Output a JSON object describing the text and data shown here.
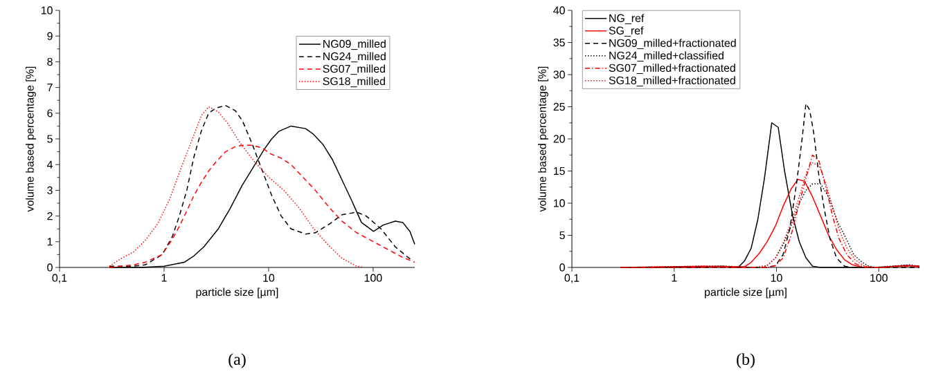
{
  "chart_data": [
    {
      "type": "line",
      "xlabel": "particle size [µm]",
      "ylabel": "volume based percentage [%]",
      "log": "x",
      "xlim": [
        0.1,
        250
      ],
      "ylim": [
        0,
        10
      ],
      "xticks": [
        {
          "value": 0.1,
          "label": "0,1"
        },
        1,
        10,
        100
      ],
      "yticks": [
        0,
        1,
        2,
        3,
        4,
        5,
        6,
        7,
        8,
        9,
        10
      ],
      "legend": "top right",
      "annotations": [
        "(a)"
      ],
      "series": [
        {
          "name": "NG09_milled",
          "color": "#000000",
          "line_style": "solid",
          "x": [
            0.3,
            0.6,
            1,
            1.56,
            1.93,
            2.4,
            3.3,
            4.3,
            5.6,
            7.4,
            9.1,
            10.7,
            12.6,
            16.4,
            22.6,
            26.5,
            32.9,
            40.7,
            50.4,
            62.4,
            77.3,
            101,
            125,
            163,
            192,
            225,
            250
          ],
          "values": [
            0,
            0,
            0.05,
            0.2,
            0.45,
            0.8,
            1.5,
            2.3,
            3.2,
            4.0,
            4.6,
            5.0,
            5.3,
            5.5,
            5.4,
            5.2,
            4.8,
            4.2,
            3.4,
            2.6,
            1.75,
            1.4,
            1.65,
            1.8,
            1.75,
            1.4,
            0.9
          ]
        },
        {
          "name": "NG24_milled",
          "color": "#000000",
          "line_style": "dashed",
          "x": [
            0.3,
            0.51,
            0.66,
            0.96,
            1.2,
            1.4,
            1.65,
            1.93,
            2.27,
            2.67,
            3.13,
            3.87,
            4.8,
            5.63,
            6.97,
            8.64,
            10.7,
            13.2,
            16.4,
            22.6,
            28,
            38.6,
            50.4,
            69.5,
            86,
            119,
            163,
            238
          ],
          "values": [
            0.05,
            0.05,
            0.1,
            0.5,
            1.2,
            2.0,
            3.0,
            4.3,
            5.3,
            6.0,
            6.2,
            6.3,
            6.1,
            5.7,
            4.8,
            3.8,
            2.8,
            2.0,
            1.5,
            1.3,
            1.35,
            1.7,
            2.05,
            2.15,
            2.0,
            1.5,
            0.8,
            0.25
          ]
        },
        {
          "name": "SG07_milled",
          "color": "#ff0000",
          "line_style": "dashed",
          "x": [
            0.3,
            0.51,
            0.66,
            0.96,
            1.2,
            1.4,
            1.65,
            1.93,
            2.27,
            2.67,
            3.13,
            3.87,
            4.8,
            5.63,
            6.97,
            8.64,
            10.7,
            13.2,
            16.4,
            22.6,
            28,
            38.6,
            50.4,
            69.5,
            101,
            138,
            190,
            250
          ],
          "values": [
            0,
            0.1,
            0.2,
            0.5,
            1.1,
            1.6,
            2.2,
            2.8,
            3.3,
            3.75,
            4.1,
            4.5,
            4.7,
            4.75,
            4.75,
            4.65,
            4.4,
            4.25,
            4.0,
            3.4,
            3.0,
            2.3,
            1.8,
            1.35,
            1.0,
            0.7,
            0.4,
            0.2
          ]
        },
        {
          "name": "SG18_milled",
          "color": "#ff0000",
          "line_style": "dotted",
          "x": [
            0.3,
            0.39,
            0.51,
            0.66,
            0.87,
            1.13,
            1.48,
            1.93,
            2.27,
            2.67,
            3.3,
            4.08,
            5.32,
            7.36,
            10.1,
            14,
            19.3,
            26.5,
            36.6,
            50.4,
            69.5,
            81
          ],
          "values": [
            0.05,
            0.35,
            0.6,
            1.05,
            1.7,
            2.65,
            3.95,
            5.15,
            5.9,
            6.25,
            6.05,
            5.6,
            4.85,
            4.1,
            3.5,
            3.0,
            2.35,
            1.55,
            0.9,
            0.35,
            0.05,
            0
          ]
        }
      ]
    },
    {
      "type": "line",
      "xlabel": "particle size [µm]",
      "ylabel": "volume based percentage [%]",
      "log": "x",
      "xlim": [
        0.1,
        250
      ],
      "ylim": [
        0,
        40
      ],
      "xticks": [
        {
          "value": 0.1,
          "label": "0,1"
        },
        1,
        10,
        100
      ],
      "yticks": [
        0,
        5,
        10,
        15,
        20,
        25,
        30,
        35,
        40
      ],
      "legend": "top left",
      "annotations": [
        "(b)"
      ],
      "series": [
        {
          "name": "NG_ref",
          "color": "#000000",
          "line_style": "solid",
          "x": [
            0.3,
            1,
            2,
            3,
            4.2,
            4.87,
            5.66,
            6.58,
            7.65,
            8.99,
            10.4,
            12,
            14.4,
            16.7,
            19.4,
            22.5,
            27,
            100,
            180,
            250
          ],
          "values": [
            0,
            0,
            0.1,
            0.2,
            0,
            1.0,
            3.0,
            7.5,
            14,
            22.5,
            21.8,
            15,
            8,
            4,
            1.5,
            0.2,
            0,
            0,
            0.3,
            0.2
          ]
        },
        {
          "name": "SG_ref",
          "color": "#ff0000",
          "line_style": "solid",
          "x": [
            0.3,
            2,
            4,
            4.87,
            5.66,
            6.8,
            8.1,
            9.8,
            11.6,
            13.9,
            16.2,
            18.8,
            22.5,
            27,
            32.3,
            38.6,
            46.3,
            55.5,
            70.6,
            101,
            185,
            250
          ],
          "values": [
            0,
            0.2,
            0.1,
            0.1,
            0.8,
            2.2,
            4,
            6.5,
            9.5,
            12.2,
            13.7,
            13.4,
            11,
            8,
            5,
            2.8,
            1.2,
            0.4,
            0,
            0,
            0.3,
            0.2
          ]
        },
        {
          "name": "NG09_milled+fractionated",
          "color": "#000000",
          "line_style": "dashed",
          "x": [
            0.3,
            8.1,
            9.8,
            11.6,
            13.5,
            15.7,
            17.8,
            19.4,
            21.1,
            23.1,
            26.1,
            29.4,
            33.3,
            38.6,
            46.3,
            55.5,
            250
          ],
          "values": [
            0,
            0,
            0.3,
            2,
            6,
            13,
            20,
            25.5,
            24.5,
            21,
            14,
            9,
            4.5,
            1.5,
            0.2,
            0,
            0
          ]
        },
        {
          "name": "NG24_milled+classified",
          "color": "#000000",
          "line_style": "dotted",
          "x": [
            0.3,
            2,
            3,
            7,
            8.1,
            9.8,
            11.6,
            13.9,
            16.7,
            19.4,
            22.5,
            27,
            32.3,
            39.8,
            46.3,
            56.9,
            66.2,
            77.6,
            88.8,
            200,
            250
          ],
          "values": [
            0,
            0.2,
            0.2,
            0,
            0.3,
            1.5,
            3.5,
            6.5,
            10,
            12,
            13,
            13,
            11,
            7,
            5,
            2,
            1,
            0.3,
            0,
            0.4,
            0.2
          ]
        },
        {
          "name": "SG07_milled+fractionated",
          "color": "#ff0000",
          "line_style": "dashdot",
          "x": [
            0.3,
            8.1,
            9.8,
            11.6,
            13.9,
            16.7,
            19.9,
            22.5,
            26.1,
            30.4,
            35.3,
            40.8,
            48.8,
            58.8,
            70.6,
            100,
            200,
            250
          ],
          "values": [
            0,
            0,
            0.3,
            1.5,
            5,
            10,
            14.5,
            17.5,
            16.5,
            12.5,
            8,
            4.5,
            2,
            0.6,
            0.1,
            0,
            0.2,
            0.1
          ]
        },
        {
          "name": "SG18_milled+fractionated",
          "color": "#ff0000",
          "line_style": "dotted",
          "x": [
            0.3,
            1,
            2,
            3,
            6,
            8.1,
            9.8,
            11.6,
            13.9,
            16.7,
            19.9,
            22.5,
            26.1,
            30.4,
            35.3,
            40.8,
            48.8,
            58.8,
            70.6,
            88.8,
            200,
            250
          ],
          "values": [
            0,
            0,
            0.2,
            0.2,
            0,
            0.3,
            1.5,
            3.8,
            7,
            11,
            15,
            16.3,
            15.8,
            13,
            9.5,
            6,
            3,
            1.2,
            0.3,
            0,
            0.3,
            0.2
          ]
        }
      ]
    }
  ]
}
